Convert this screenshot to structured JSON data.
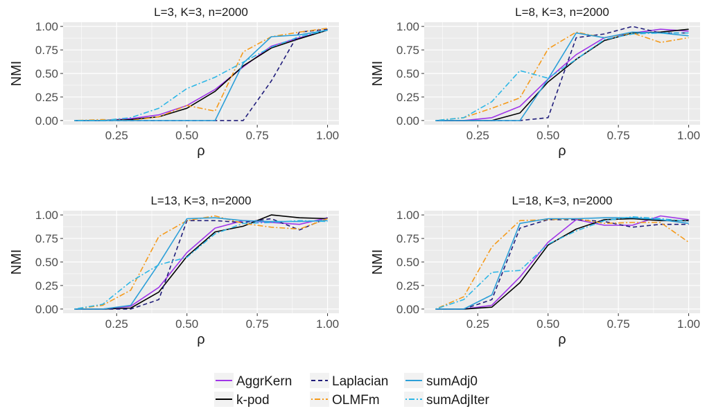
{
  "chart_data": [
    {
      "type": "line",
      "title": "L=3, K=3, n=2000",
      "xlabel": "ρ",
      "ylabel": "NMI",
      "xlim": [
        0.1,
        1.0
      ],
      "ylim": [
        0,
        1
      ],
      "xticks": [
        "0.25",
        "0.50",
        "0.75",
        "1.00"
      ],
      "yticks": [
        "0.00",
        "0.25",
        "0.50",
        "0.75",
        "1.00"
      ],
      "x": [
        0.1,
        0.2,
        0.3,
        0.4,
        0.5,
        0.6,
        0.7,
        0.8,
        0.9,
        1.0
      ],
      "series": [
        {
          "name": "AggrKern",
          "values": [
            0.0,
            0.0,
            0.02,
            0.06,
            0.16,
            0.33,
            0.57,
            0.79,
            0.88,
            0.96
          ]
        },
        {
          "name": "k-pod",
          "values": [
            0.0,
            0.0,
            0.01,
            0.04,
            0.13,
            0.31,
            0.58,
            0.77,
            0.87,
            0.96
          ]
        },
        {
          "name": "Laplacian",
          "values": [
            0.0,
            0.0,
            0.0,
            0.0,
            0.0,
            0.0,
            0.0,
            0.42,
            0.94,
            0.97
          ]
        },
        {
          "name": "OLMFm",
          "values": [
            0.0,
            0.01,
            0.0,
            0.04,
            0.16,
            0.1,
            0.73,
            0.89,
            0.94,
            0.98
          ]
        },
        {
          "name": "sumAdj0",
          "values": [
            0.0,
            0.0,
            0.0,
            0.0,
            0.0,
            0.0,
            0.61,
            0.89,
            0.91,
            0.96
          ]
        },
        {
          "name": "sumAdjIter",
          "values": [
            0.0,
            0.0,
            0.03,
            0.13,
            0.34,
            0.46,
            0.62,
            0.78,
            0.89,
            0.96
          ]
        }
      ]
    },
    {
      "type": "line",
      "title": "L=8, K=3, n=2000",
      "xlabel": "ρ",
      "ylabel": "NMI",
      "xlim": [
        0.1,
        1.0
      ],
      "ylim": [
        0,
        1
      ],
      "xticks": [
        "0.25",
        "0.50",
        "0.75",
        "1.00"
      ],
      "yticks": [
        "0.00",
        "0.25",
        "0.50",
        "0.75",
        "1.00"
      ],
      "x": [
        0.1,
        0.2,
        0.3,
        0.4,
        0.5,
        0.6,
        0.7,
        0.8,
        0.9,
        1.0
      ],
      "series": [
        {
          "name": "AggrKern",
          "values": [
            0.0,
            0.0,
            0.03,
            0.15,
            0.44,
            0.7,
            0.88,
            0.93,
            0.97,
            0.95
          ]
        },
        {
          "name": "k-pod",
          "values": [
            0.0,
            0.0,
            0.0,
            0.08,
            0.41,
            0.65,
            0.85,
            0.93,
            0.94,
            0.97
          ]
        },
        {
          "name": "Laplacian",
          "values": [
            0.0,
            0.0,
            0.0,
            0.0,
            0.03,
            0.88,
            0.92,
            1.0,
            0.93,
            0.93
          ]
        },
        {
          "name": "OLMFm",
          "values": [
            0.0,
            0.03,
            0.13,
            0.24,
            0.76,
            0.94,
            0.88,
            0.93,
            0.83,
            0.88
          ]
        },
        {
          "name": "sumAdj0",
          "values": [
            0.0,
            0.0,
            0.0,
            0.0,
            0.44,
            0.93,
            0.88,
            0.94,
            0.93,
            0.9
          ]
        },
        {
          "name": "sumAdjIter",
          "values": [
            0.0,
            0.03,
            0.2,
            0.53,
            0.45,
            0.65,
            0.86,
            0.92,
            0.93,
            0.93
          ]
        }
      ]
    },
    {
      "type": "line",
      "title": "L=13, K=3, n=2000",
      "xlabel": "ρ",
      "ylabel": "NMI",
      "xlim": [
        0.1,
        1.0
      ],
      "ylim": [
        0,
        1
      ],
      "xticks": [
        "0.25",
        "0.50",
        "0.75",
        "1.00"
      ],
      "yticks": [
        "0.00",
        "0.25",
        "0.50",
        "0.75",
        "1.00"
      ],
      "x": [
        0.1,
        0.2,
        0.3,
        0.4,
        0.5,
        0.6,
        0.7,
        0.8,
        0.9,
        1.0
      ],
      "series": [
        {
          "name": "AggrKern",
          "values": [
            0.0,
            0.0,
            0.03,
            0.23,
            0.6,
            0.86,
            0.94,
            0.92,
            0.9,
            0.97
          ]
        },
        {
          "name": "k-pod",
          "values": [
            0.0,
            0.0,
            0.01,
            0.18,
            0.56,
            0.82,
            0.88,
            1.0,
            0.97,
            0.96
          ]
        },
        {
          "name": "Laplacian",
          "values": [
            0.0,
            0.0,
            0.0,
            0.1,
            0.94,
            0.94,
            0.92,
            0.96,
            0.84,
            0.97
          ]
        },
        {
          "name": "OLMFm",
          "values": [
            0.0,
            0.04,
            0.2,
            0.77,
            0.94,
            0.99,
            0.91,
            0.87,
            0.85,
            0.96
          ]
        },
        {
          "name": "sumAdj0",
          "values": [
            0.0,
            0.0,
            0.04,
            0.48,
            0.96,
            0.97,
            0.94,
            0.93,
            0.93,
            0.94
          ]
        },
        {
          "name": "sumAdjIter",
          "values": [
            0.0,
            0.05,
            0.29,
            0.47,
            0.55,
            0.8,
            0.91,
            0.92,
            0.94,
            0.93
          ]
        }
      ]
    },
    {
      "type": "line",
      "title": "L=18, K=3, n=2000",
      "xlabel": "ρ",
      "ylabel": "NMI",
      "xlim": [
        0.1,
        1.0
      ],
      "ylim": [
        0,
        1
      ],
      "xticks": [
        "0.25",
        "0.50",
        "0.75",
        "1.00"
      ],
      "yticks": [
        "0.00",
        "0.25",
        "0.50",
        "0.75",
        "1.00"
      ],
      "x": [
        0.1,
        0.2,
        0.3,
        0.4,
        0.5,
        0.6,
        0.7,
        0.8,
        0.9,
        1.0
      ],
      "series": [
        {
          "name": "AggrKern",
          "values": [
            0.0,
            0.0,
            0.04,
            0.34,
            0.71,
            0.95,
            0.89,
            0.89,
            0.99,
            0.95
          ]
        },
        {
          "name": "k-pod",
          "values": [
            0.0,
            0.0,
            0.02,
            0.28,
            0.68,
            0.85,
            0.95,
            0.96,
            0.94,
            0.94
          ]
        },
        {
          "name": "Laplacian",
          "values": [
            0.0,
            0.0,
            0.1,
            0.86,
            0.95,
            0.95,
            0.93,
            0.87,
            0.9,
            0.9
          ]
        },
        {
          "name": "OLMFm",
          "values": [
            0.0,
            0.13,
            0.66,
            0.94,
            0.95,
            0.96,
            0.91,
            0.92,
            0.92,
            0.71
          ]
        },
        {
          "name": "sumAdj0",
          "values": [
            0.0,
            0.0,
            0.15,
            0.91,
            0.96,
            0.96,
            0.97,
            0.97,
            0.95,
            0.91
          ]
        },
        {
          "name": "sumAdjIter",
          "values": [
            0.0,
            0.1,
            0.39,
            0.41,
            0.69,
            0.83,
            0.94,
            0.98,
            0.96,
            0.93
          ]
        }
      ]
    }
  ],
  "legend": {
    "placement": "bottom",
    "items": [
      {
        "name": "AggrKern",
        "color": "#a035e8",
        "dash": "solid"
      },
      {
        "name": "k-pod",
        "color": "#000000",
        "dash": "solid"
      },
      {
        "name": "Laplacian",
        "color": "#1f1c7a",
        "dash": "dashed"
      },
      {
        "name": "OLMFm",
        "color": "#f59a1a",
        "dash": "dotdash"
      },
      {
        "name": "sumAdj0",
        "color": "#2c9fd8",
        "dash": "solid"
      },
      {
        "name": "sumAdjIter",
        "color": "#2cb6e6",
        "dash": "dotdash"
      }
    ]
  },
  "colors": {
    "panel_background": "#ebebeb",
    "grid": "#ffffff"
  }
}
